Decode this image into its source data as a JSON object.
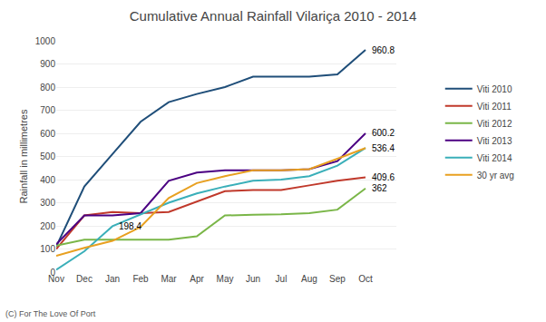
{
  "chart_data": {
    "type": "line",
    "title": "Cumulative Annual Rainfall Vilariça 2010 - 2014",
    "ylabel": "Rainfall in millimetres",
    "categories": [
      "Nov",
      "Dec",
      "Jan",
      "Feb",
      "Mar",
      "Apr",
      "May",
      "Jun",
      "Jul",
      "Aug",
      "Sep",
      "Oct"
    ],
    "series": [
      {
        "name": "Viti 2010",
        "color": "#1F4E79",
        "values": [
          110,
          370,
          510,
          650,
          735,
          770,
          800,
          845,
          845,
          845,
          855,
          960.8
        ]
      },
      {
        "name": "Viti 2011",
        "color": "#C0392B",
        "values": [
          100,
          245,
          260,
          255,
          260,
          305,
          350,
          355,
          355,
          375,
          395,
          409.6
        ]
      },
      {
        "name": "Viti 2012",
        "color": "#7AB648",
        "values": [
          115,
          140,
          140,
          140,
          140,
          155,
          245,
          248,
          250,
          255,
          270,
          362
        ]
      },
      {
        "name": "Viti 2013",
        "color": "#4B0082",
        "values": [
          120,
          245,
          245,
          255,
          395,
          430,
          440,
          440,
          440,
          445,
          480,
          600.2
        ]
      },
      {
        "name": "Viti 2014",
        "color": "#3AAFB9",
        "values": [
          10,
          90,
          198.4,
          250,
          300,
          340,
          370,
          395,
          400,
          415,
          460,
          536.4
        ]
      },
      {
        "name": "30 yr avg",
        "color": "#E8A020",
        "values": [
          70,
          105,
          135,
          195,
          320,
          385,
          415,
          440,
          440,
          445,
          490,
          536.4
        ]
      }
    ],
    "annotations": [
      {
        "text": "960.8",
        "x": "Oct",
        "y": 960.8
      },
      {
        "text": "600.2",
        "x": "Oct",
        "y": 600.2
      },
      {
        "text": "536.4",
        "x": "Oct",
        "y": 536.4
      },
      {
        "text": "409.6",
        "x": "Oct",
        "y": 409.6
      },
      {
        "text": "362",
        "x": "Oct",
        "y": 362
      },
      {
        "text": "198.4",
        "x": "Jan",
        "y": 198.4
      }
    ],
    "caption": "(C) For The Love Of Port",
    "ylim": [
      0,
      1000
    ],
    "yticks": [
      0,
      100,
      200,
      300,
      400,
      500,
      600,
      700,
      800,
      900,
      1000
    ],
    "grid": true,
    "legend": "right"
  }
}
